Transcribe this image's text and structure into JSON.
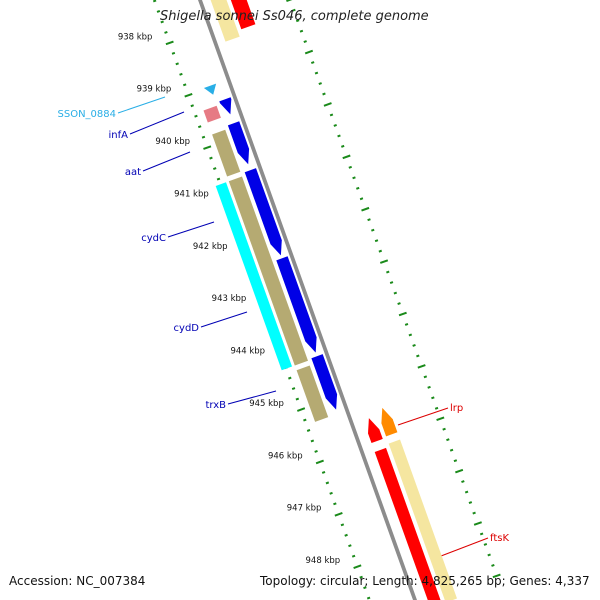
{
  "title": "Shigella sonnei Ss046, complete genome",
  "footer": {
    "accession": "Accession: NC_007384",
    "summary": "Topology: circular; Length: 4,825,265 bp; Genes: 4,337"
  },
  "ticks": [
    "938 kbp",
    "939 kbp",
    "940 kbp",
    "941 kbp",
    "942 kbp",
    "943 kbp",
    "944 kbp",
    "945 kbp",
    "946 kbp",
    "947 kbp",
    "948 kbp"
  ],
  "gene_labels": [
    "SSON_0884",
    "infA",
    "aat",
    "cydC",
    "cydD",
    "trxB",
    "lrp",
    "ftsK"
  ],
  "colors": {
    "forward_cds": "#0000e6",
    "reverse_cds": "#ff0000",
    "forward_gene": "#b5aa72",
    "reverse_gene": "#f5e6a0",
    "cydC_gene": "#00ffff",
    "misc_feature": "#29aee6",
    "pseudo": "#e67a84",
    "lrp_cds": "#ff8a00",
    "tick": "#1a8a1a",
    "backbone": "#8c8c8c",
    "forward_label": "#0000b4",
    "reverse_label": "#dc0000",
    "SSON_0884_label": "#29aee6"
  }
}
